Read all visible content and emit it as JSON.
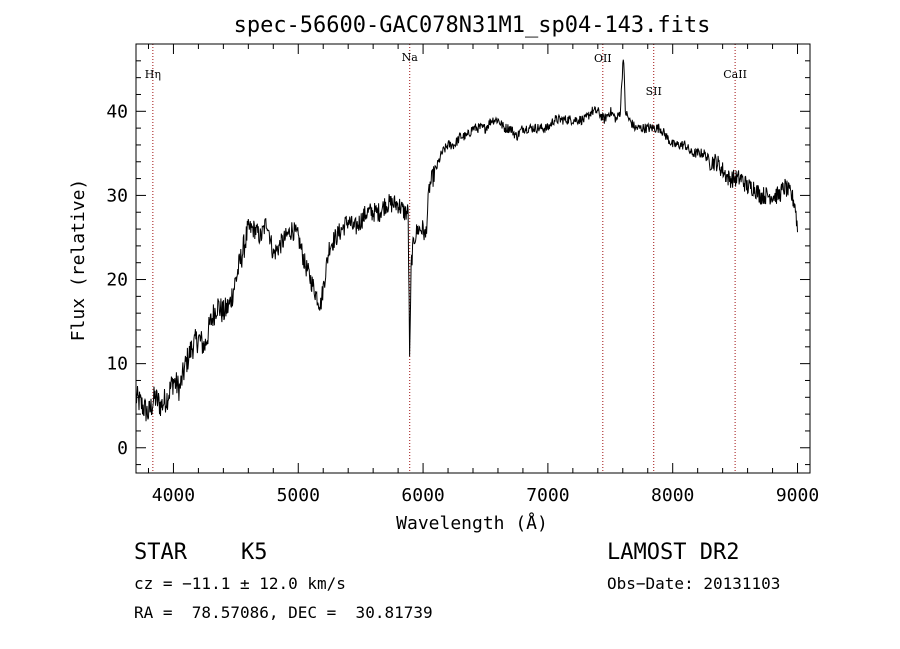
{
  "chart_data": {
    "type": "line",
    "title": "spec-56600-GAC078N31M1_sp04-143.fits",
    "xlabel": "Wavelength (Å)",
    "ylabel": "Flux (relative)",
    "xlim": [
      3700,
      9100
    ],
    "ylim": [
      -3,
      48
    ],
    "xticks": [
      4000,
      5000,
      6000,
      7000,
      8000,
      9000
    ],
    "yticks": [
      0,
      10,
      20,
      30,
      40
    ],
    "grid": false,
    "line_color": "#000000",
    "marker_color": "#a01010",
    "line_markers": [
      {
        "label": "Hη",
        "x": 3835
      },
      {
        "label": "Na",
        "x": 5893
      },
      {
        "label": "OII",
        "x": 7440
      },
      {
        "label": "SII",
        "x": 7848
      },
      {
        "label": "CaII",
        "x": 8500
      }
    ],
    "series": [
      {
        "x": [
          3700,
          3750,
          3800,
          3850,
          3900,
          3950,
          4000,
          4050,
          4100,
          4150,
          4200,
          4250,
          4300,
          4350,
          4400,
          4450,
          4500,
          4550,
          4600,
          4650,
          4700,
          4750,
          4800,
          4850,
          4900,
          4950,
          5000,
          5050,
          5100,
          5150,
          5180,
          5200,
          5250,
          5300,
          5350,
          5400,
          5450,
          5500,
          5550,
          5600,
          5650,
          5700,
          5750,
          5800,
          5850,
          5880,
          5893,
          5905,
          5930,
          5960,
          6000,
          6020,
          6050,
          6100,
          6150,
          6200,
          6250,
          6300,
          6350,
          6400,
          6450,
          6500,
          6550,
          6600,
          6650,
          6700,
          6750,
          6800,
          6850,
          6900,
          6950,
          7000,
          7050,
          7100,
          7150,
          7200,
          7250,
          7300,
          7350,
          7400,
          7450,
          7500,
          7550,
          7580,
          7605,
          7620,
          7650,
          7700,
          7750,
          7800,
          7850,
          7900,
          7950,
          8000,
          8050,
          8100,
          8150,
          8200,
          8250,
          8300,
          8350,
          8400,
          8450,
          8500,
          8550,
          8600,
          8650,
          8700,
          8750,
          8800,
          8850,
          8900,
          8950,
          8980,
          9000
        ],
        "y": [
          6,
          5,
          4,
          6,
          5,
          6,
          8,
          7,
          10,
          12,
          13,
          12,
          15,
          17,
          16,
          17,
          20,
          23,
          26,
          26,
          25,
          27,
          23,
          24,
          25,
          26,
          25,
          22,
          20,
          18,
          17,
          19,
          24,
          25,
          26,
          27,
          26,
          27,
          28,
          28,
          28,
          29,
          29,
          29,
          28,
          28,
          10,
          22,
          25,
          26,
          26,
          25,
          31,
          33,
          35,
          36,
          36,
          37,
          37,
          38,
          38,
          38,
          39,
          39,
          38,
          38,
          37,
          38,
          38,
          38,
          38,
          38,
          39,
          39,
          39,
          39,
          39,
          39,
          40,
          40,
          39,
          40,
          39,
          40,
          47,
          40,
          39,
          38,
          38,
          38,
          38,
          38,
          37,
          36,
          36,
          36,
          35,
          35,
          35,
          34,
          34,
          33,
          32,
          32,
          32,
          31,
          31,
          30,
          30,
          30,
          30,
          31,
          30,
          29,
          26
        ]
      }
    ]
  },
  "footer": {
    "object_class": "STAR",
    "subclass": "K5",
    "survey": "LAMOST DR2",
    "redshift": "cz = −11.1 ± 12.0 km/s",
    "obs_date": "Obs−Date: 20131103",
    "coords": "RA =  78.57086, DEC =  30.81739"
  }
}
